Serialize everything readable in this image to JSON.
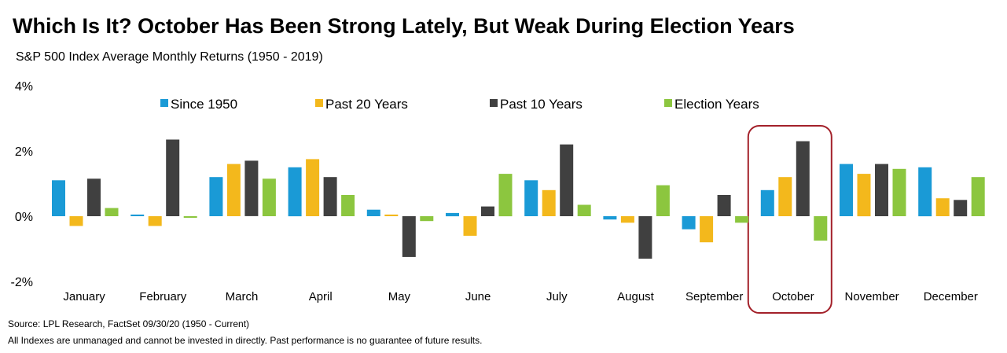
{
  "title": "Which Is It? October Has Been Strong Lately, But Weak During Election Years",
  "subtitle": "S&P 500 Index Average Monthly Returns (1950 - 2019)",
  "footnotes": {
    "source": "Source: LPL Research, FactSet 09/30/20 (1950 - Current)",
    "disclaimer": "All Indexes are unmanaged and cannot be invested in directly. Past performance is no guarantee of future results."
  },
  "chart_data": {
    "type": "bar",
    "categories": [
      "January",
      "February",
      "March",
      "April",
      "May",
      "June",
      "July",
      "August",
      "September",
      "October",
      "November",
      "December"
    ],
    "series": [
      {
        "name": "Since 1950",
        "color": "#1a9ad6",
        "values": [
          1.1,
          0.05,
          1.2,
          1.5,
          0.2,
          0.1,
          1.1,
          -0.1,
          -0.4,
          0.8,
          1.6,
          1.5
        ]
      },
      {
        "name": "Past 20 Years",
        "color": "#f3b81c",
        "values": [
          -0.3,
          -0.3,
          1.6,
          1.75,
          0.05,
          -0.6,
          0.8,
          -0.2,
          -0.8,
          1.2,
          1.3,
          0.55
        ]
      },
      {
        "name": "Past 10 Years",
        "color": "#404040",
        "values": [
          1.15,
          2.35,
          1.7,
          1.2,
          -1.25,
          0.3,
          2.2,
          -1.3,
          0.65,
          2.3,
          1.6,
          0.5
        ]
      },
      {
        "name": "Election Years",
        "color": "#8cc63f",
        "values": [
          0.25,
          -0.05,
          1.15,
          0.65,
          -0.15,
          1.3,
          0.35,
          0.95,
          -0.2,
          -0.75,
          1.45,
          1.2
        ]
      }
    ],
    "ylim": [
      -2,
      4
    ],
    "yticks": [
      -2,
      0,
      2,
      4
    ],
    "ytick_labels": [
      "-2%",
      "0%",
      "2%",
      "4%"
    ],
    "legend_position": "top",
    "highlight_category": "October",
    "highlight_color": "#a3212a",
    "grid": false
  }
}
